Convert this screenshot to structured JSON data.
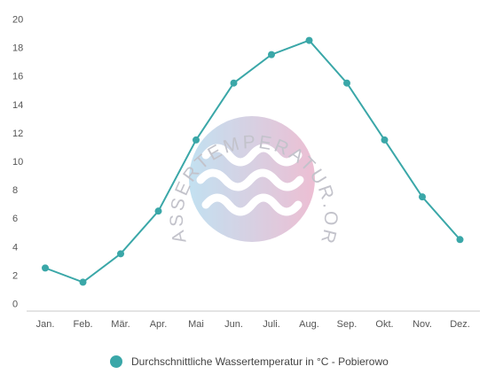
{
  "watermark": {
    "text": "WASSERTEMPERATUR.ORG"
  },
  "colors": {
    "series": "#3aa7a8",
    "axis": "#c8c8c8",
    "text": "#555555"
  },
  "chart_data": {
    "type": "line",
    "categories": [
      "Jan.",
      "Feb.",
      "Mär.",
      "Apr.",
      "Mai",
      "Jun.",
      "Juli.",
      "Aug.",
      "Sep.",
      "Okt.",
      "Nov.",
      "Dez."
    ],
    "series": [
      {
        "name": "Durchschnittliche Wassertemperatur in °C - Pobierowo",
        "values": [
          2.5,
          1.5,
          3.5,
          6.5,
          11.5,
          15.5,
          17.5,
          18.5,
          15.5,
          11.5,
          7.5,
          4.5
        ]
      }
    ],
    "ylim": [
      0,
      20
    ],
    "yticks": [
      0,
      2,
      4,
      6,
      8,
      10,
      12,
      14,
      16,
      18,
      20
    ],
    "grid": false,
    "legend_position": "bottom"
  }
}
